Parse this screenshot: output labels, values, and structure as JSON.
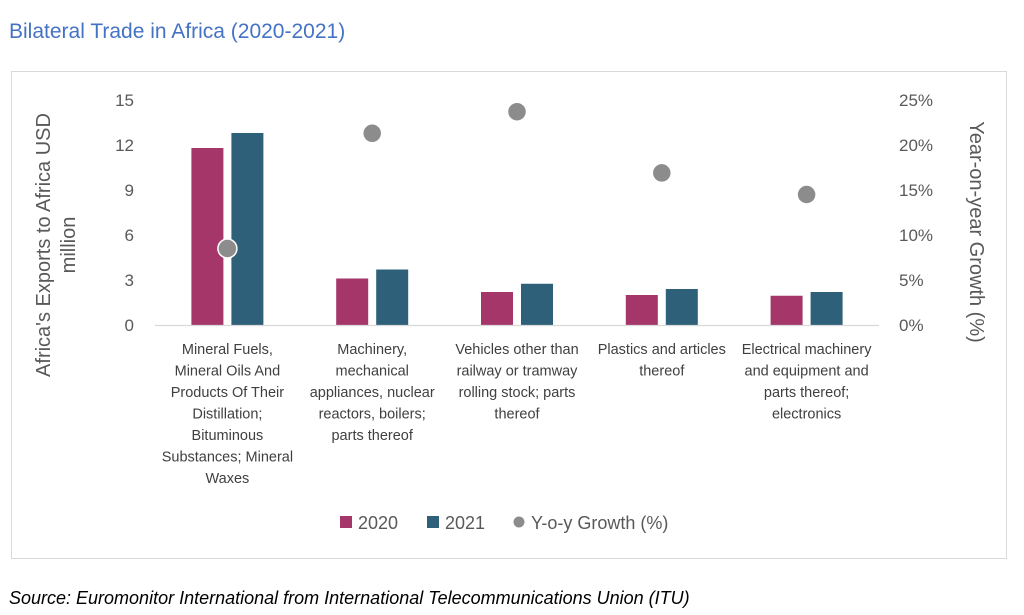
{
  "page": {
    "title": "Bilateral Trade in Africa (2020-2021)",
    "source": "Source: Euromonitor International from International Telecommunications Union (ITU)"
  },
  "chart_data": {
    "type": "bar",
    "title": "",
    "categories": [
      "Mineral Fuels, Mineral Oils And Products Of Their Distillation; Bituminous Substances; Mineral Waxes",
      "Machinery, mechanical appliances, nuclear reactors, boilers; parts thereof",
      "Vehicles other than railway or tramway rolling stock; parts thereof",
      "Plastics and articles thereof",
      "Electrical machinery and equipment and parts thereof; electronics"
    ],
    "category_label_lines": [
      [
        "Mineral Fuels,",
        "Mineral Oils And",
        "Products Of Their",
        "Distillation;",
        "Bituminous",
        "Substances; Mineral",
        "Waxes"
      ],
      [
        "Machinery,",
        "mechanical",
        "appliances, nuclear",
        "reactors, boilers;",
        "parts thereof"
      ],
      [
        "Vehicles other than",
        "railway or tramway",
        "rolling stock; parts",
        "thereof"
      ],
      [
        "Plastics and articles",
        "thereof"
      ],
      [
        "Electrical machinery",
        "and equipment and",
        "parts thereof;",
        "electronics"
      ]
    ],
    "series": [
      {
        "name": "2020",
        "type": "bar",
        "axis": "left",
        "color": "#a5366a",
        "values": [
          11.8,
          3.1,
          2.2,
          2.0,
          1.95
        ]
      },
      {
        "name": "2021",
        "type": "bar",
        "axis": "left",
        "color": "#2e6179",
        "values": [
          12.8,
          3.7,
          2.75,
          2.4,
          2.2
        ]
      },
      {
        "name": "Y-o-y Growth (%)",
        "type": "scatter",
        "axis": "right",
        "color": "#8c8c8c",
        "values": [
          8.5,
          21.3,
          23.7,
          16.9,
          14.5
        ]
      }
    ],
    "y_left": {
      "label_lines": [
        "Africa's Exports to Africa USD",
        "million"
      ],
      "ylim": [
        0,
        15
      ],
      "ticks": [
        "0",
        "3",
        "6",
        "9",
        "12",
        "15"
      ]
    },
    "y_right": {
      "label": "Year-on-year Growth (%)",
      "ylim": [
        0,
        25
      ],
      "ticks": [
        "0%",
        "5%",
        "10%",
        "15%",
        "20%",
        "25%"
      ]
    },
    "legend": {
      "position": "bottom",
      "items": [
        "2020",
        "2021",
        "Y-o-y Growth (%)"
      ]
    },
    "grid": false
  }
}
